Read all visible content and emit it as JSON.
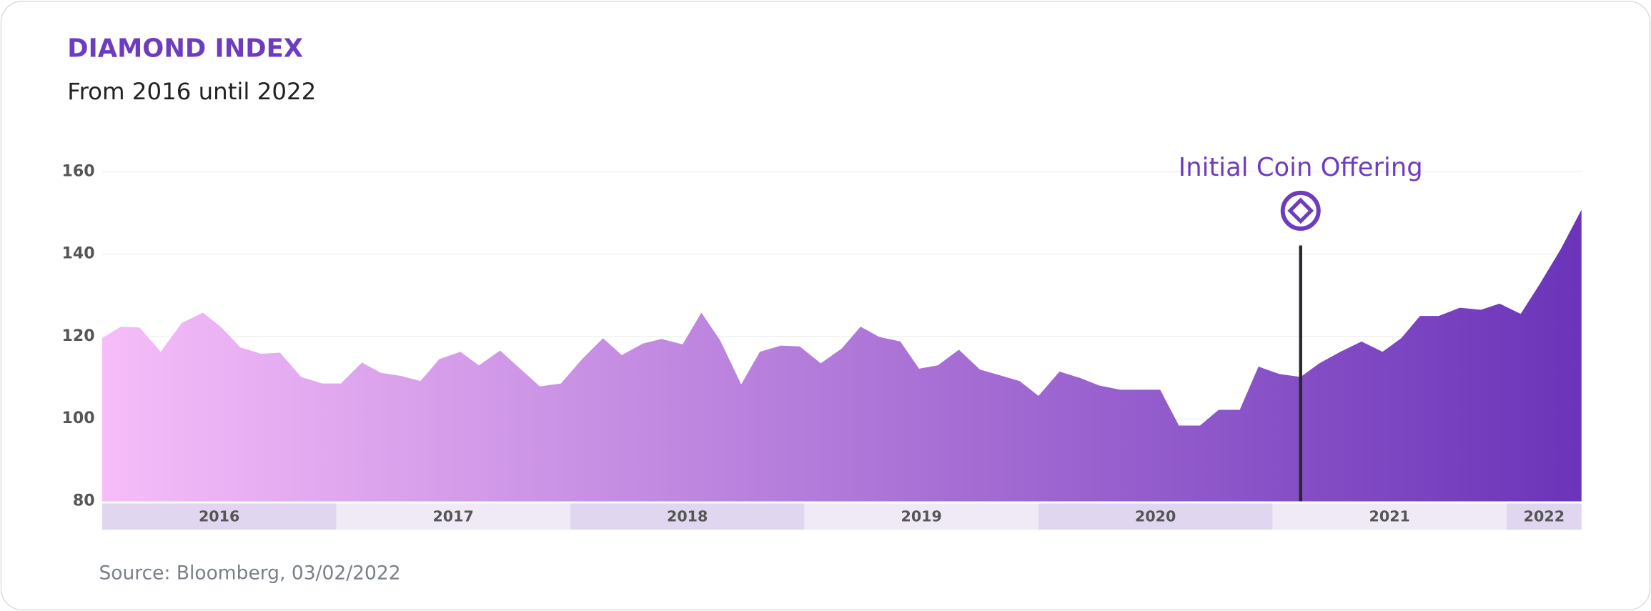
{
  "chart_data": {
    "type": "area",
    "title": "DIAMOND INDEX",
    "subtitle": "From 2016 until 2022",
    "source": "Source: Bloomberg, 03/02/2022",
    "annotation": {
      "text": "Initial Coin Offering",
      "x": 2021.12
    },
    "x": [
      2016.0,
      2016.08,
      2016.16,
      2016.25,
      2016.34,
      2016.43,
      2016.51,
      2016.59,
      2016.68,
      2016.76,
      2016.85,
      2016.94,
      2017.02,
      2017.11,
      2017.19,
      2017.28,
      2017.36,
      2017.44,
      2017.53,
      2017.61,
      2017.7,
      2017.79,
      2017.87,
      2017.96,
      2018.05,
      2018.14,
      2018.22,
      2018.31,
      2018.39,
      2018.48,
      2018.56,
      2018.64,
      2018.73,
      2018.81,
      2018.9,
      2018.98,
      2019.07,
      2019.16,
      2019.24,
      2019.32,
      2019.41,
      2019.49,
      2019.57,
      2019.66,
      2019.75,
      2019.83,
      2019.92,
      2020.0,
      2020.09,
      2020.18,
      2020.26,
      2020.35,
      2020.43,
      2020.52,
      2020.6,
      2020.69,
      2020.77,
      2020.86,
      2020.94,
      2021.03,
      2021.12,
      2021.2,
      2021.29,
      2021.38,
      2021.47,
      2021.55,
      2021.63,
      2021.71,
      2021.8,
      2021.89,
      2021.97,
      2022.06,
      2022.14,
      2022.23,
      2022.32
    ],
    "values": [
      119.6,
      122.4,
      122.2,
      116.3,
      123.3,
      125.8,
      122.2,
      117.4,
      115.8,
      116.1,
      110.2,
      108.6,
      108.6,
      113.7,
      111.2,
      110.4,
      109.2,
      114.5,
      116.3,
      113.0,
      116.6,
      112.0,
      107.9,
      108.6,
      114.5,
      119.6,
      115.5,
      118.3,
      119.4,
      118.1,
      125.8,
      119.1,
      108.4,
      116.3,
      117.8,
      117.6,
      113.5,
      117.1,
      122.4,
      119.9,
      118.8,
      112.2,
      113.0,
      116.8,
      112.0,
      110.7,
      109.2,
      105.6,
      111.5,
      109.9,
      108.1,
      107.1,
      107.1,
      107.1,
      98.4,
      98.4,
      102.2,
      102.2,
      112.7,
      110.9,
      110.2,
      113.5,
      116.3,
      118.8,
      116.3,
      119.6,
      125.0,
      125.0,
      127.0,
      126.5,
      128.0,
      125.5,
      132.6,
      141.1,
      150.8
    ],
    "gradient": [
      "#f6bdf9",
      "#6b34b9"
    ],
    "xlim": [
      2016,
      2022.32
    ],
    "xticks": [
      2016,
      2017,
      2018,
      2019,
      2020,
      2021,
      2022
    ],
    "ylim": [
      80,
      160
    ],
    "yticks": [
      80,
      100,
      120,
      140,
      160
    ],
    "grid": true
  }
}
